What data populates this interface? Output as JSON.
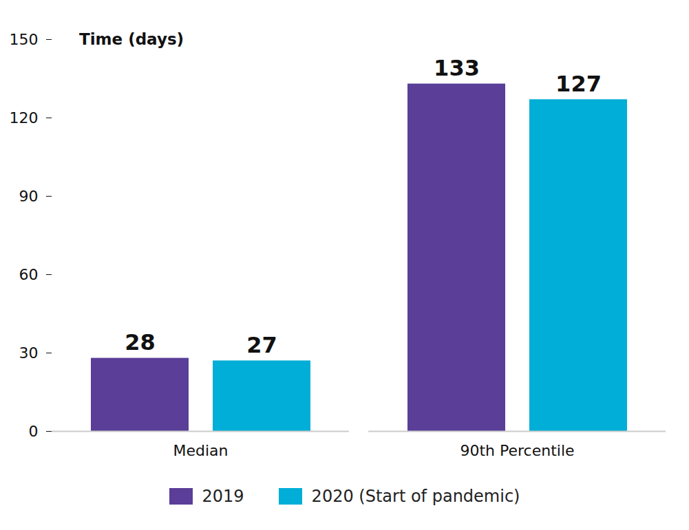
{
  "chart_data": {
    "type": "bar",
    "y_label": "Time (days)",
    "categories": [
      "Median",
      "90th Percentile"
    ],
    "series": [
      {
        "name": "2019",
        "color": "#5a3e98",
        "values": [
          28,
          133
        ]
      },
      {
        "name": "2020 (Start of pandemic)",
        "color": "#00aed7",
        "values": [
          27,
          127
        ]
      }
    ],
    "ylim": [
      0,
      150
    ],
    "yticks": [
      0,
      30,
      60,
      90,
      120,
      150
    ],
    "data_labels": true,
    "legend": "bottom",
    "grid": false
  }
}
